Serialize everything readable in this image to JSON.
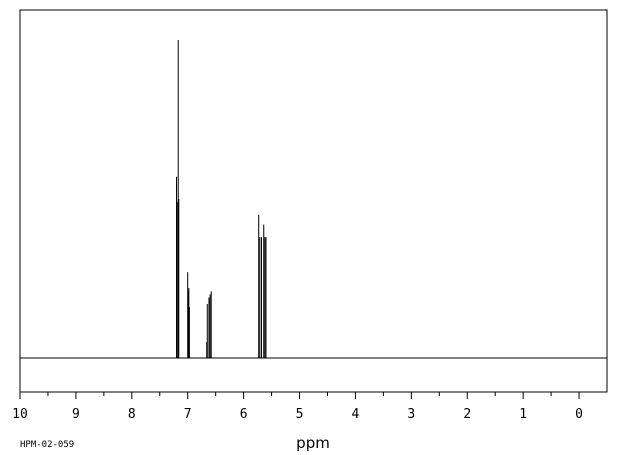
{
  "chart_data": {
    "type": "line",
    "title": "",
    "xlabel": "ppm",
    "ylabel": "",
    "x_reversed": true,
    "xlim": [
      10,
      -0.5
    ],
    "ylim": [
      -0.1,
      1.0
    ],
    "grid": false,
    "baseline": 0,
    "tick_labels": [
      "10",
      "9",
      "8",
      "7",
      "6",
      "5",
      "4",
      "3",
      "2",
      "1",
      "0"
    ],
    "tick_values": [
      10,
      9,
      8,
      7,
      6,
      5,
      4,
      3,
      2,
      1,
      0
    ],
    "minor_tick_step": 0.5,
    "peaks": [
      {
        "ppm": 7.2,
        "intensity": 0.57
      },
      {
        "ppm": 7.19,
        "intensity": 0.49
      },
      {
        "ppm": 7.17,
        "intensity": 1.0
      },
      {
        "ppm": 7.16,
        "intensity": 0.5
      },
      {
        "ppm": 7.0,
        "intensity": 0.27
      },
      {
        "ppm": 6.99,
        "intensity": 0.21
      },
      {
        "ppm": 6.98,
        "intensity": 0.22
      },
      {
        "ppm": 6.97,
        "intensity": 0.16
      },
      {
        "ppm": 6.66,
        "intensity": 0.05
      },
      {
        "ppm": 6.65,
        "intensity": 0.17
      },
      {
        "ppm": 6.62,
        "intensity": 0.19
      },
      {
        "ppm": 6.6,
        "intensity": 0.2
      },
      {
        "ppm": 6.58,
        "intensity": 0.21
      },
      {
        "ppm": 5.73,
        "intensity": 0.45
      },
      {
        "ppm": 5.71,
        "intensity": 0.38
      },
      {
        "ppm": 5.68,
        "intensity": 0.38
      },
      {
        "ppm": 5.64,
        "intensity": 0.42
      },
      {
        "ppm": 5.62,
        "intensity": 0.38
      },
      {
        "ppm": 5.6,
        "intensity": 0.38
      }
    ]
  },
  "footer": {
    "code": "HPM-02-059"
  }
}
